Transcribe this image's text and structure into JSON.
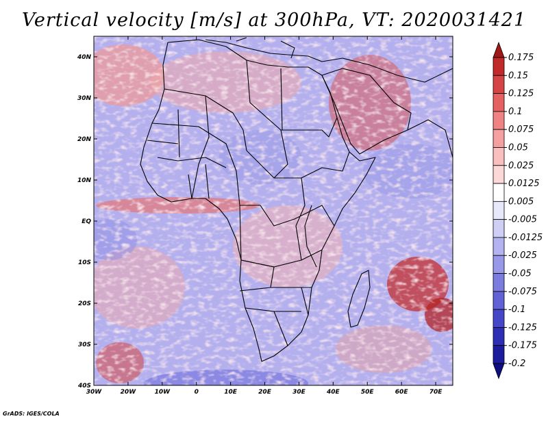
{
  "title": "Vertical velocity [m/s] at 300hPa, VT: 2020031421",
  "credit": "GrADS: IGES/COLA",
  "map": {
    "lon_range": [
      -30,
      75
    ],
    "lat_range": [
      -40,
      45
    ],
    "lat_ticks": [
      {
        "value": 40,
        "label": "40N"
      },
      {
        "value": 30,
        "label": "30N"
      },
      {
        "value": 20,
        "label": "20N"
      },
      {
        "value": 10,
        "label": "10N"
      },
      {
        "value": 0,
        "label": "EQ"
      },
      {
        "value": -10,
        "label": "10S"
      },
      {
        "value": -20,
        "label": "20S"
      },
      {
        "value": -30,
        "label": "30S"
      },
      {
        "value": -40,
        "label": "40S"
      }
    ],
    "lon_ticks": [
      {
        "value": -30,
        "label": "30W"
      },
      {
        "value": -20,
        "label": "20W"
      },
      {
        "value": -10,
        "label": "10W"
      },
      {
        "value": 0,
        "label": "0"
      },
      {
        "value": 10,
        "label": "10E"
      },
      {
        "value": 20,
        "label": "20E"
      },
      {
        "value": 30,
        "label": "30E"
      },
      {
        "value": 40,
        "label": "40E"
      },
      {
        "value": 50,
        "label": "50E"
      },
      {
        "value": 60,
        "label": "60E"
      },
      {
        "value": 70,
        "label": "70E"
      }
    ]
  },
  "colorbar": {
    "labels": [
      "0.175",
      "0.15",
      "0.125",
      "0.1",
      "0.075",
      "0.05",
      "0.025",
      "0.0125",
      "0.005",
      "-0.005",
      "-0.0125",
      "-0.025",
      "-0.05",
      "-0.075",
      "-0.1",
      "-0.125",
      "-0.175",
      "-0.2"
    ],
    "colors": [
      "#a01818",
      "#c02a2a",
      "#d64545",
      "#e66262",
      "#ef8282",
      "#f5a0a0",
      "#f9bebe",
      "#fcd8d8",
      "#ffffff",
      "#e8e8fb",
      "#cfcff5",
      "#b3b3ef",
      "#9898e8",
      "#7c7ce0",
      "#6262d6",
      "#4646c8",
      "#2e2eb4",
      "#1c1c9c",
      "#0e0e80"
    ]
  },
  "palette": {
    "land_outline": "#000000",
    "background": "#ffffff"
  }
}
